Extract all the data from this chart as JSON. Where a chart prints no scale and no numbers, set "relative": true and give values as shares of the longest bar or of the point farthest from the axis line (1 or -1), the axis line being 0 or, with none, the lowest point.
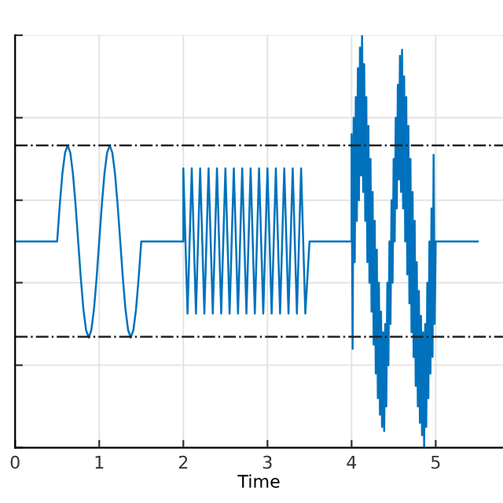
{
  "chart_data": {
    "type": "line",
    "xlabel": "Time",
    "relative": true,
    "xlim": [
      0,
      5.8
    ],
    "xticks": [
      0,
      1,
      2,
      3,
      4,
      5
    ],
    "grid": true,
    "tick_labels": "x",
    "legend": false,
    "line_style": "solid",
    "ref_lines": [
      {
        "axis": "y",
        "value": 0.733,
        "color": "#222222",
        "line_style": "dashdot"
      },
      {
        "axis": "y",
        "value": 0.269,
        "color": "#222222",
        "line_style": "dashdot"
      }
    ],
    "series": [
      {
        "color": "#0072bd",
        "x": [
          0,
          0.5,
          0.53125,
          0.5625,
          0.59375,
          0.625,
          0.65625,
          0.6875,
          0.71875,
          0.75,
          0.78125,
          0.8125,
          0.84375,
          0.875,
          0.90625,
          0.9375,
          0.96875,
          1.0,
          1.03125,
          1.0625,
          1.09375,
          1.125,
          1.15625,
          1.1875,
          1.21875,
          1.25,
          1.28125,
          1.3125,
          1.34375,
          1.375,
          1.40625,
          1.4375,
          1.46875,
          1.5,
          2.0,
          2.0,
          2.05,
          2.1,
          2.15,
          2.2,
          2.25,
          2.3,
          2.35,
          2.4,
          2.45,
          2.5,
          2.55,
          2.6,
          2.65,
          2.7,
          2.75,
          2.8,
          2.85,
          2.9,
          2.95,
          3.0,
          3.05,
          3.1,
          3.15,
          3.2,
          3.25,
          3.3,
          3.35,
          3.4,
          3.45,
          3.5,
          4.0,
          4.0,
          4.0125,
          4.025,
          4.0375,
          4.05,
          4.0625,
          4.075,
          4.0875,
          4.1,
          4.1125,
          4.125,
          4.1375,
          4.15,
          4.1625,
          4.175,
          4.1875,
          4.2,
          4.2125,
          4.225,
          4.2375,
          4.25,
          4.2625,
          4.275,
          4.2875,
          4.3,
          4.3125,
          4.325,
          4.3375,
          4.35,
          4.3625,
          4.375,
          4.3875,
          4.4,
          4.4125,
          4.425,
          4.4375,
          4.45,
          4.4625,
          4.475,
          4.4875,
          4.5,
          4.5125,
          4.525,
          4.5375,
          4.55,
          4.5625,
          4.575,
          4.5875,
          4.6,
          4.6125,
          4.625,
          4.6375,
          4.65,
          4.6625,
          4.675,
          4.6875,
          4.7,
          4.7125,
          4.725,
          4.7375,
          4.75,
          4.7625,
          4.775,
          4.7875,
          4.8,
          4.8125,
          4.825,
          4.8375,
          4.85,
          4.8625,
          4.875,
          4.8875,
          4.9,
          4.9125,
          4.925,
          4.9375,
          4.95,
          4.9625,
          4.975,
          4.9875,
          5.0,
          5.5
        ],
        "values": [
          0.5,
          0.5,
          0.589,
          0.665,
          0.715,
          0.733,
          0.715,
          0.665,
          0.589,
          0.5,
          0.411,
          0.335,
          0.285,
          0.267,
          0.285,
          0.335,
          0.411,
          0.5,
          0.589,
          0.665,
          0.715,
          0.733,
          0.715,
          0.665,
          0.589,
          0.5,
          0.411,
          0.335,
          0.285,
          0.267,
          0.285,
          0.335,
          0.411,
          0.5,
          0.5,
          0.677,
          0.325,
          0.677,
          0.325,
          0.677,
          0.325,
          0.677,
          0.325,
          0.677,
          0.325,
          0.677,
          0.325,
          0.677,
          0.325,
          0.677,
          0.325,
          0.677,
          0.325,
          0.677,
          0.325,
          0.677,
          0.325,
          0.677,
          0.325,
          0.677,
          0.325,
          0.677,
          0.325,
          0.677,
          0.325,
          0.5,
          0.5,
          0.76,
          0.24,
          0.8,
          0.45,
          0.85,
          0.55,
          0.92,
          0.6,
          0.97,
          0.66,
          1.0,
          0.62,
          0.93,
          0.55,
          0.85,
          0.45,
          0.78,
          0.4,
          0.7,
          0.33,
          0.62,
          0.25,
          0.55,
          0.18,
          0.48,
          0.12,
          0.4,
          0.08,
          0.33,
          0.05,
          0.28,
          0.04,
          0.3,
          0.1,
          0.4,
          0.2,
          0.5,
          0.3,
          0.6,
          0.4,
          0.7,
          0.5,
          0.8,
          0.58,
          0.88,
          0.65,
          0.95,
          0.62,
          0.965,
          0.58,
          0.9,
          0.5,
          0.85,
          0.42,
          0.78,
          0.35,
          0.7,
          0.28,
          0.62,
          0.22,
          0.55,
          0.15,
          0.45,
          0.1,
          0.38,
          0.06,
          0.32,
          0.03,
          0.28,
          0.0,
          0.3,
          0.05,
          0.4,
          0.12,
          0.5,
          0.18,
          0.58,
          0.22,
          0.71,
          0.3,
          0.5,
          0.5
        ]
      }
    ]
  }
}
